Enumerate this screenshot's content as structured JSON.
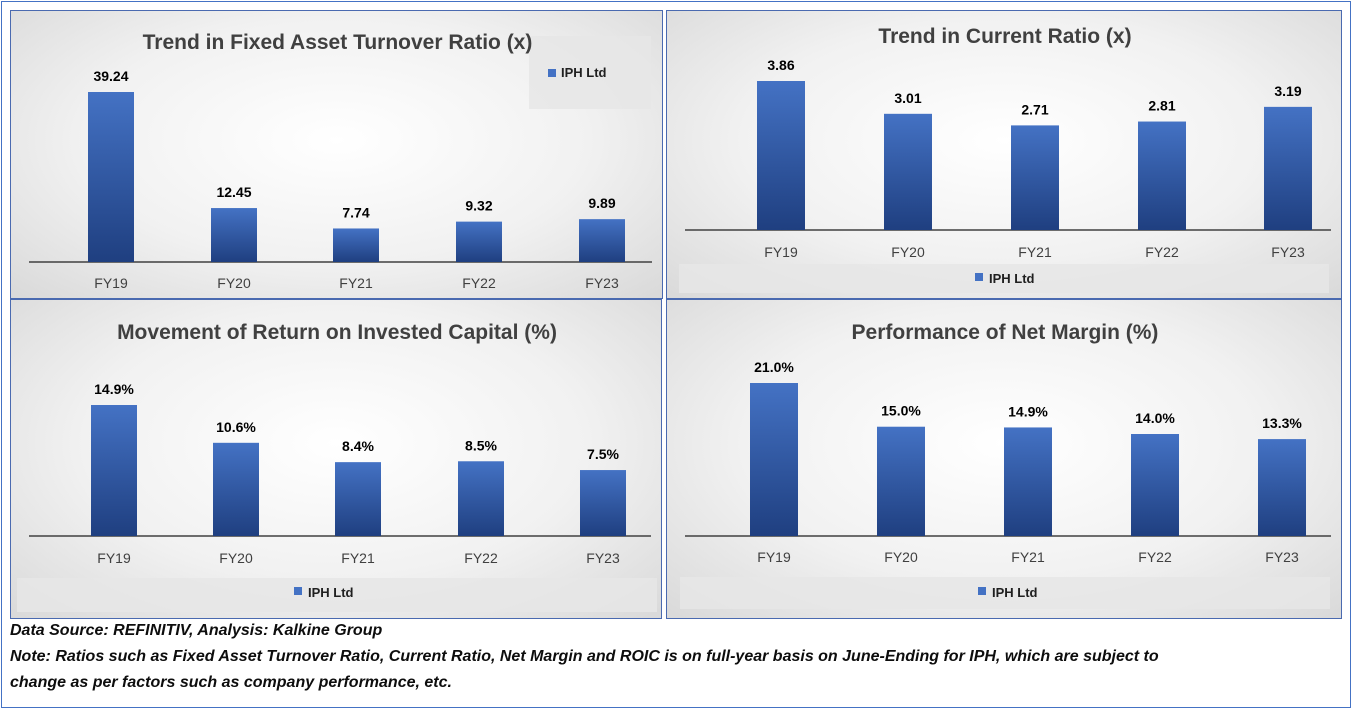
{
  "chart_data": [
    {
      "type": "bar",
      "title": "Trend in Fixed Asset Turnover Ratio (x)",
      "categories": [
        "FY19",
        "FY20",
        "FY21",
        "FY22",
        "FY23"
      ],
      "series": [
        {
          "name": "IPH Ltd",
          "values": [
            39.24,
            12.45,
            7.74,
            9.32,
            9.89
          ]
        }
      ],
      "value_labels": [
        "39.24",
        "12.45",
        "7.74",
        "9.32",
        "9.89"
      ],
      "ylim": [
        0,
        39.24
      ],
      "legend": "top-right",
      "grid": false
    },
    {
      "type": "bar",
      "title": "Trend in Current Ratio (x)",
      "categories": [
        "FY19",
        "FY20",
        "FY21",
        "FY22",
        "FY23"
      ],
      "series": [
        {
          "name": "IPH Ltd",
          "values": [
            3.86,
            3.01,
            2.71,
            2.81,
            3.19
          ]
        }
      ],
      "value_labels": [
        "3.86",
        "3.01",
        "2.71",
        "2.81",
        "3.19"
      ],
      "ylim": [
        0,
        3.86
      ],
      "legend": "bottom",
      "grid": false
    },
    {
      "type": "bar",
      "title": "Movement of Return on Invested Capital (%)",
      "categories": [
        "FY19",
        "FY20",
        "FY21",
        "FY22",
        "FY23"
      ],
      "series": [
        {
          "name": "IPH Ltd",
          "values": [
            14.9,
            10.6,
            8.4,
            8.5,
            7.5
          ]
        }
      ],
      "value_labels": [
        "14.9%",
        "10.6%",
        "8.4%",
        "8.5%",
        "7.5%"
      ],
      "ylim": [
        0,
        14.9
      ],
      "legend": "bottom",
      "grid": false
    },
    {
      "type": "bar",
      "title": "Performance of Net Margin (%)",
      "categories": [
        "FY19",
        "FY20",
        "FY21",
        "FY22",
        "FY23"
      ],
      "series": [
        {
          "name": "IPH Ltd",
          "values": [
            21.0,
            15.0,
            14.9,
            14.0,
            13.3
          ]
        }
      ],
      "value_labels": [
        "21.0%",
        "15.0%",
        "14.9%",
        "14.0%",
        "13.3%"
      ],
      "ylim": [
        0,
        21.0
      ],
      "legend": "bottom",
      "grid": false
    }
  ],
  "colors": {
    "bar_top": "#4472c4",
    "bar_bottom": "#1f3f80",
    "border": "#4472c4"
  },
  "footer": {
    "source": "Data Source: REFINITIV, Analysis: Kalkine Group",
    "note_line1": "Note: Ratios such as Fixed Asset Turnover Ratio, Current Ratio, Net Margin and ROIC is on full-year basis on June-Ending for IPH, which are subject to",
    "note_line2": "change as per factors such as company performance, etc."
  }
}
